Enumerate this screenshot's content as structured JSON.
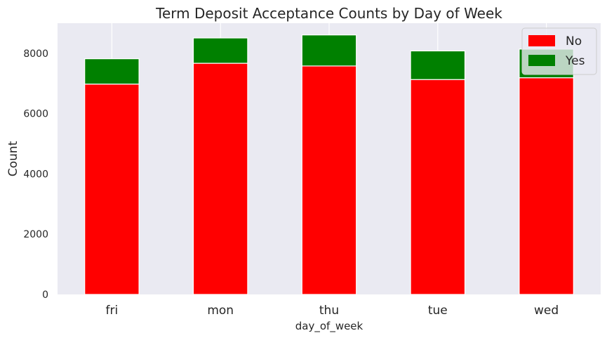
{
  "chart_data": {
    "type": "bar",
    "stacked": true,
    "title": "Term Deposit Acceptance Counts by Day of Week",
    "xlabel": "day_of_week",
    "ylabel": "Count",
    "categories": [
      "fri",
      "mon",
      "thu",
      "tue",
      "wed"
    ],
    "series": [
      {
        "name": "No",
        "color": "#ff0000",
        "values": [
          6980,
          7670,
          7580,
          7130,
          7190
        ]
      },
      {
        "name": "Yes",
        "color": "#008000",
        "values": [
          840,
          840,
          1030,
          950,
          950
        ]
      }
    ],
    "ylim": [
      0,
      9000
    ],
    "yticks": [
      0,
      2000,
      4000,
      6000,
      8000
    ],
    "grid": true,
    "legend": "top-right",
    "background": "#eaeaf2"
  }
}
